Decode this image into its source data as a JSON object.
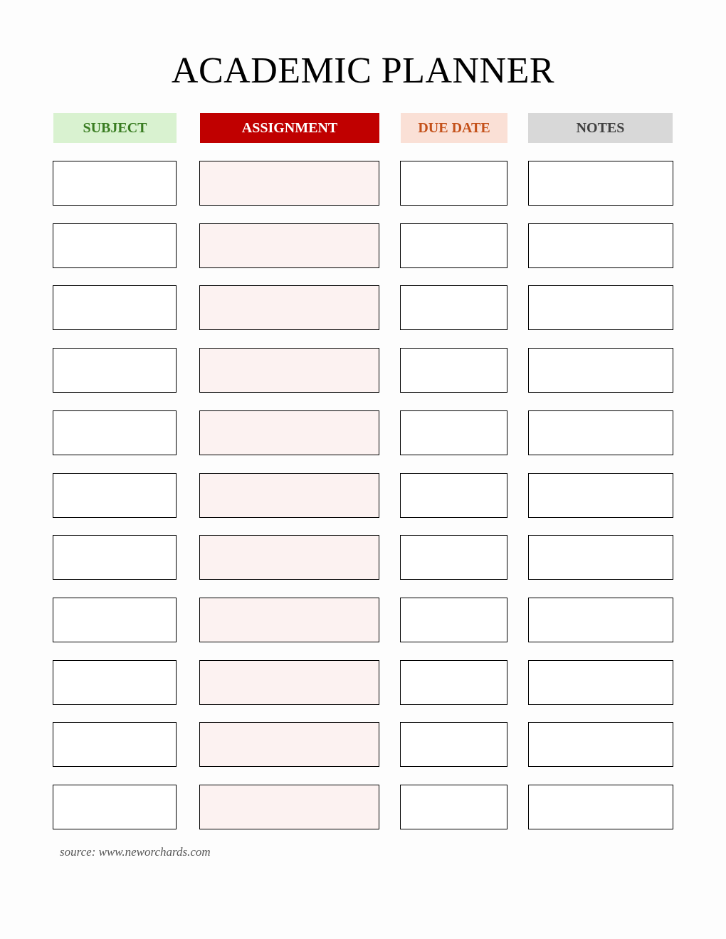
{
  "title": "ACADEMIC PLANNER",
  "columns": [
    {
      "label": "SUBJECT",
      "header_bg": "#d9f2d0",
      "header_color": "#3a7d22",
      "cell_bg": "#ffffff"
    },
    {
      "label": "ASSIGNMENT",
      "header_bg": "#c00000",
      "header_color": "#ffffff",
      "cell_bg": "#fcf2f1"
    },
    {
      "label": "DUE DATE",
      "header_bg": "#fae0d6",
      "header_color": "#c4511a",
      "cell_bg": "#ffffff"
    },
    {
      "label": "NOTES",
      "header_bg": "#d8d8d8",
      "header_color": "#404040",
      "cell_bg": "#ffffff"
    }
  ],
  "row_count": 11,
  "source": "source: www.neworchards.com"
}
